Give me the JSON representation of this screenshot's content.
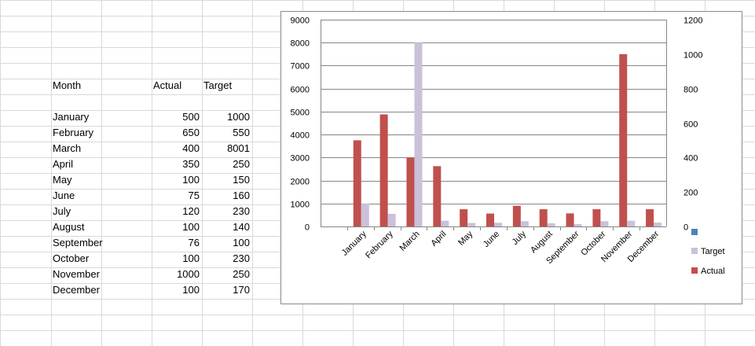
{
  "sheet": {
    "header": {
      "month": "Month",
      "actual": "Actual",
      "target": "Target"
    },
    "rows": [
      {
        "month": "January",
        "actual": "500",
        "target": "1000"
      },
      {
        "month": "February",
        "actual": "650",
        "target": "550"
      },
      {
        "month": "March",
        "actual": "400",
        "target": "8001"
      },
      {
        "month": "April",
        "actual": "350",
        "target": "250"
      },
      {
        "month": "May",
        "actual": "100",
        "target": "150"
      },
      {
        "month": "June",
        "actual": "75",
        "target": "160"
      },
      {
        "month": "July",
        "actual": "120",
        "target": "230"
      },
      {
        "month": "August",
        "actual": "100",
        "target": "140"
      },
      {
        "month": "September",
        "actual": "76",
        "target": "100"
      },
      {
        "month": "October",
        "actual": "100",
        "target": "230"
      },
      {
        "month": "November",
        "actual": "1000",
        "target": "250"
      },
      {
        "month": "December",
        "actual": "100",
        "target": "170"
      }
    ]
  },
  "chart_data": {
    "type": "bar",
    "title": "",
    "xlabel": "",
    "ylabel": "",
    "categories": [
      "January",
      "February",
      "March",
      "April",
      "May",
      "June",
      "July",
      "August",
      "September",
      "October",
      "November",
      "December"
    ],
    "series": [
      {
        "name": "Actual",
        "axis": "secondary",
        "color": "#c0504d",
        "values": [
          500,
          650,
          400,
          350,
          100,
          75,
          120,
          100,
          76,
          100,
          1000,
          100
        ]
      },
      {
        "name": "Target",
        "axis": "primary",
        "color": "#ccc0da",
        "values": [
          1000,
          550,
          8001,
          250,
          150,
          160,
          230,
          140,
          100,
          230,
          250,
          170
        ]
      }
    ],
    "primary_axis": {
      "min": 0,
      "max": 9000,
      "ticks": [
        "0",
        "1000",
        "2000",
        "3000",
        "4000",
        "5000",
        "6000",
        "7000",
        "8000",
        "9000"
      ]
    },
    "secondary_axis": {
      "min": 0,
      "max": 1200,
      "ticks": [
        "0",
        "200",
        "400",
        "600",
        "800",
        "1000",
        "1200"
      ]
    },
    "legend": {
      "placement": "right",
      "blank_marker_color": "#4f81bd",
      "entries": [
        "Target",
        "Actual"
      ]
    },
    "grid": true
  }
}
